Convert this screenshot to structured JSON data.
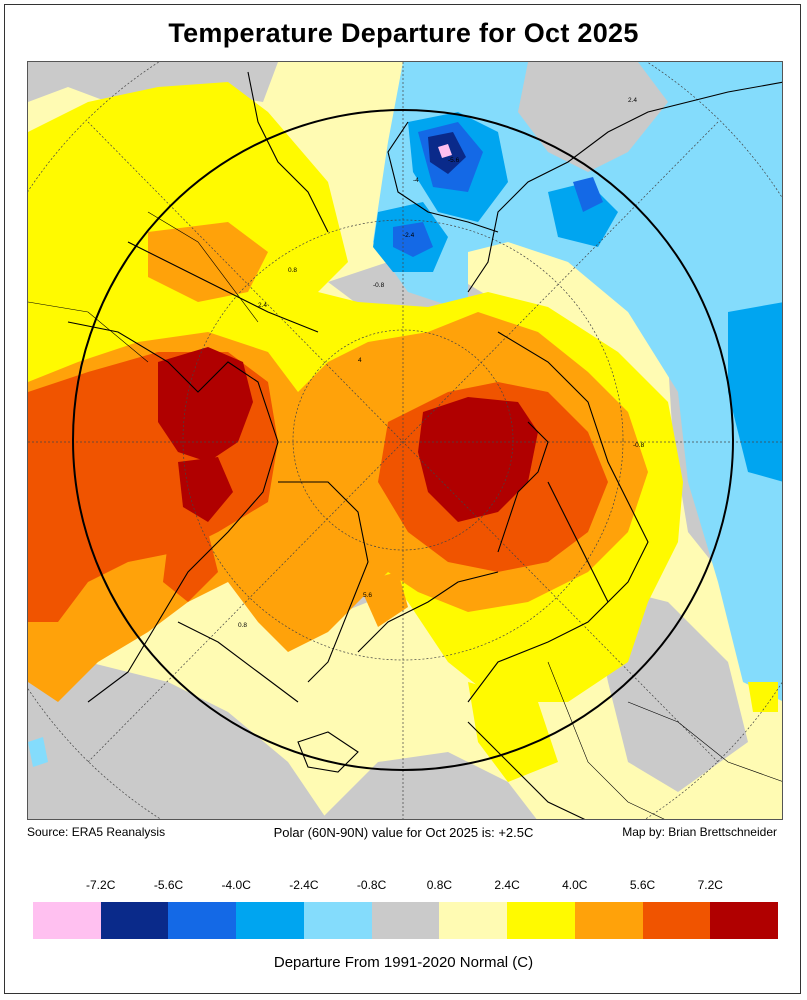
{
  "title": "Temperature Departure for Oct 2025",
  "footer": {
    "source": "Source: ERA5 Reanalysis",
    "polar_value": "Polar (60N-90N) value for Oct 2025 is: +2.5C",
    "credit": "Map by: Brian Brettschneider"
  },
  "legend": {
    "labels": [
      "-7.2C",
      "-5.6C",
      "-4.0C",
      "-2.4C",
      "-0.8C",
      "0.8C",
      "2.4C",
      "4.0C",
      "5.6C",
      "7.2C"
    ],
    "colors": [
      "#ffc0f0",
      "#0a2a8a",
      "#1469e6",
      "#00a5f0",
      "#84dcfc",
      "#cacaca",
      "#fffbb3",
      "#fffa00",
      "#ffa20a",
      "#f05400",
      "#b00000"
    ],
    "title": "Departure From 1991-2020 Normal (C)"
  },
  "map": {
    "contour_labels": [
      "0.8",
      "-0.8",
      "2.4",
      "-2.4",
      "4",
      "5.6",
      "-4",
      "-5.6",
      "-0.8",
      "0.8",
      "2.4"
    ]
  }
}
